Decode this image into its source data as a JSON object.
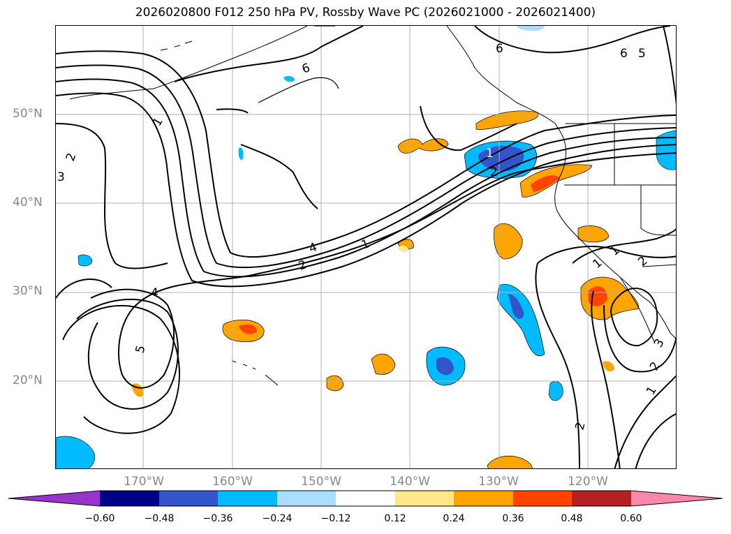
{
  "title": "2026020800 F012 250 hPa PV, Rossby Wave PC (2026021000 - 2026021400)",
  "map": {
    "latitude_labels": [
      "50°N",
      "40°N",
      "30°N",
      "20°N"
    ],
    "longitude_labels": [
      "170°W",
      "160°W",
      "150°W",
      "140°W",
      "130°W",
      "120°W"
    ],
    "contour_labels": [
      "6",
      "6",
      "6",
      "5",
      "1",
      "2",
      "3",
      "1",
      "2",
      "4",
      "1",
      "2",
      "4",
      "5",
      "1",
      "2",
      "2",
      "3",
      "1",
      "1",
      "2"
    ],
    "grid": true
  },
  "colorbar": {
    "tick_labels": [
      "−0.60",
      "−0.48",
      "−0.36",
      "−0.24",
      "−0.12",
      "0.12",
      "0.24",
      "0.36",
      "0.48",
      "0.60"
    ],
    "colors": [
      "#9933cc",
      "#000088",
      "#3355cc",
      "#00bbff",
      "#aaddff",
      "#ffffff",
      "#ffe88a",
      "#ffa500",
      "#ff4400",
      "#b22222",
      "#ff88aa"
    ],
    "shading_colors": {
      "neg_weak": "#aaddff",
      "neg_mod": "#00bbff",
      "neg_strong": "#3355cc",
      "pos_weak": "#ffe88a",
      "pos_mod": "#ffa500",
      "pos_strong": "#ff4400"
    }
  }
}
